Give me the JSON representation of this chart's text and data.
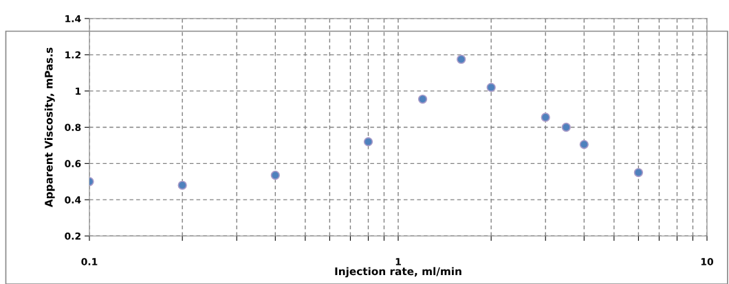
{
  "chart_data": {
    "type": "scatter",
    "xlabel": "Injection rate, ml/min",
    "ylabel": "Apparent Viscosity, mPas.s",
    "x": [
      0.1,
      0.2,
      0.4,
      0.8,
      1.2,
      1.6,
      2,
      3,
      3.5,
      4,
      6
    ],
    "series": [
      {
        "color": "#4f81bd",
        "values": [
          0.5,
          0.48,
          0.535,
          0.72,
          0.955,
          1.175,
          1.02,
          0.855,
          0.8,
          0.705,
          0.55
        ]
      }
    ],
    "log": "x",
    "xlim": [
      0.1,
      10
    ],
    "ylim": [
      0.2,
      1.4
    ],
    "xticks": [
      0.1,
      {
        "value": 0.2,
        "label": null
      },
      {
        "value": 0.3,
        "label": null
      },
      {
        "value": 0.4,
        "label": null
      },
      {
        "value": 0.5,
        "label": null
      },
      {
        "value": 0.6,
        "label": null
      },
      {
        "value": 0.7,
        "label": null
      },
      {
        "value": 0.8,
        "label": null
      },
      {
        "value": 0.9,
        "label": null
      },
      1,
      {
        "value": 2,
        "label": null
      },
      {
        "value": 3,
        "label": null
      },
      {
        "value": 4,
        "label": null
      },
      {
        "value": 5,
        "label": null
      },
      {
        "value": 6,
        "label": null
      },
      {
        "value": 7,
        "label": null
      },
      {
        "value": 8,
        "label": null
      },
      {
        "value": 9,
        "label": null
      },
      10
    ],
    "yticks": [
      0.2,
      0.4,
      0.6,
      0.8,
      1,
      1.2,
      1.4
    ],
    "grid": true,
    "marker": "circle"
  }
}
